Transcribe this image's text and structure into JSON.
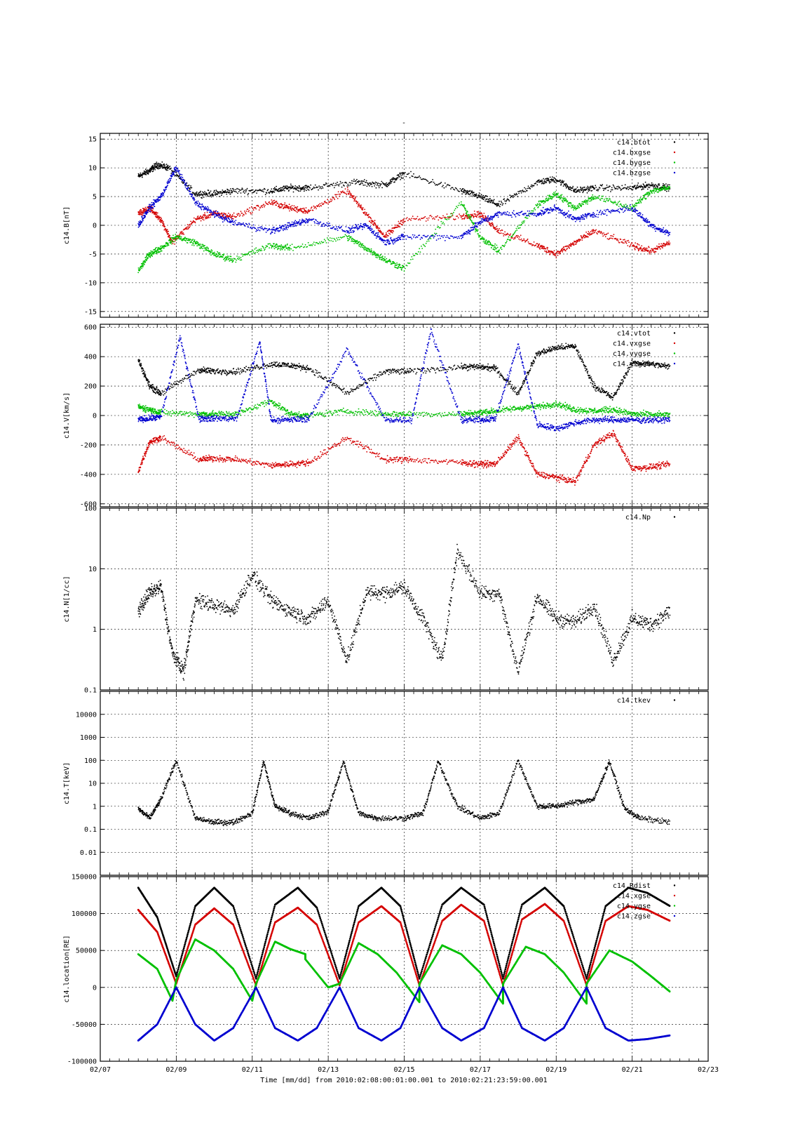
{
  "chart_data": {
    "type": "scatter",
    "title": "-",
    "grid": true,
    "legend_placement": "top-right",
    "colors": {
      "black": "#000000",
      "red": "#d40000",
      "green": "#00c000",
      "blue": "#0000d0"
    },
    "x_axis": {
      "type": "date",
      "min": "02/07",
      "max": "02/23",
      "tick_labels": [
        "02/07",
        "02/09",
        "02/11",
        "02/13",
        "02/15",
        "02/17",
        "02/19",
        "02/21",
        "02/23"
      ],
      "xlabel": "Time [mm/dd]  from 2010:02:08:00:01:00.001  to  2010:02:21:23:59:00.001"
    },
    "panels": [
      {
        "ylabel": "c14.B[nT]",
        "scale": "linear",
        "ylim": [
          -16,
          16
        ],
        "tick_values": [
          -15,
          -10,
          -5,
          0,
          5,
          10,
          15
        ],
        "tick_labels": [
          "-15",
          "-10",
          "-5",
          "0",
          "5",
          "10",
          "15"
        ],
        "series": [
          {
            "name": "c14.btot",
            "color": "#000000",
            "x_days": [
              8.0,
              8.3,
              8.5,
              8.8,
              9.5,
              10.0,
              10.5,
              11.5,
              12.0,
              12.5,
              13.7,
              14.5,
              15.0,
              16.5,
              17.0,
              17.5,
              18.5,
              19.0,
              19.5,
              20.0,
              21.0,
              21.5,
              22.0
            ],
            "values": [
              8.5,
              9.5,
              10.5,
              10.0,
              5.5,
              5.5,
              6.0,
              6.0,
              6.5,
              6.5,
              7.5,
              7.0,
              9.0,
              6.0,
              5.0,
              3.5,
              7.5,
              8.0,
              6.0,
              6.5,
              6.5,
              7.0,
              6.5
            ]
          },
          {
            "name": "c14.bxgse",
            "color": "#d40000",
            "x_days": [
              8.0,
              8.3,
              8.6,
              8.9,
              9.5,
              10.0,
              10.5,
              11.5,
              12.0,
              12.5,
              13.5,
              14.0,
              14.5,
              15.0,
              16.5,
              17.0,
              17.5,
              18.5,
              19.0,
              19.5,
              20.0,
              21.0,
              21.5,
              22.0
            ],
            "values": [
              2.0,
              3.0,
              1.0,
              -3.0,
              1.0,
              2.0,
              1.5,
              4.0,
              3.0,
              2.5,
              6.0,
              2.0,
              -2.0,
              1.0,
              1.5,
              2.0,
              -1.0,
              -3.5,
              -5.0,
              -3.0,
              -1.0,
              -3.5,
              -4.5,
              -3.0
            ]
          },
          {
            "name": "c14.bygse",
            "color": "#00c000",
            "x_days": [
              8.0,
              8.3,
              8.6,
              9.0,
              9.5,
              10.0,
              10.5,
              11.5,
              12.0,
              13.5,
              14.0,
              14.5,
              15.0,
              16.5,
              17.0,
              17.5,
              18.5,
              19.0,
              19.5,
              20.0,
              21.0,
              21.5,
              22.0
            ],
            "values": [
              -8.0,
              -5.0,
              -4.0,
              -2.0,
              -3.0,
              -5.0,
              -6.0,
              -3.5,
              -4.0,
              -2.0,
              -4.0,
              -6.0,
              -7.5,
              4.0,
              -2.0,
              -4.5,
              3.5,
              5.5,
              3.0,
              5.0,
              3.0,
              6.0,
              6.5
            ]
          },
          {
            "name": "c14.bzgse",
            "color": "#0000d0",
            "x_days": [
              8.0,
              8.3,
              8.6,
              9.0,
              9.5,
              10.0,
              10.5,
              11.5,
              12.0,
              12.5,
              13.5,
              14.0,
              14.5,
              15.0,
              16.5,
              17.0,
              17.5,
              18.5,
              19.0,
              19.5,
              20.0,
              21.0,
              21.5,
              22.0
            ],
            "values": [
              0.0,
              3.0,
              5.0,
              10.0,
              4.0,
              2.0,
              0.5,
              -1.0,
              0.0,
              1.0,
              -1.0,
              0.0,
              -3.0,
              -2.0,
              -2.0,
              0.5,
              2.0,
              2.0,
              3.0,
              1.0,
              2.0,
              3.0,
              0.0,
              -1.5
            ]
          }
        ]
      },
      {
        "ylabel": "c14.V[km/s]",
        "scale": "linear",
        "ylim": [
          -620,
          620
        ],
        "tick_values": [
          -600,
          -400,
          -200,
          0,
          200,
          400,
          600
        ],
        "tick_labels": [
          "-600",
          "-400",
          "-200",
          "0",
          "200",
          "400",
          "600"
        ],
        "series": [
          {
            "name": "c14.vtot",
            "color": "#000000",
            "x_days": [
              8.0,
              8.3,
              8.6,
              9.6,
              10.0,
              10.6,
              11.5,
              12.0,
              12.5,
              13.5,
              14.5,
              15.2,
              16.5,
              17.0,
              17.4,
              18.0,
              18.5,
              19.0,
              19.5,
              20.0,
              20.5,
              21.0,
              21.5,
              22.0
            ],
            "values": [
              380,
              200,
              150,
              310,
              300,
              300,
              350,
              340,
              320,
              150,
              300,
              300,
              330,
              330,
              320,
              150,
              420,
              460,
              470,
              200,
              120,
              360,
              350,
              330
            ]
          },
          {
            "name": "c14.vxgse",
            "color": "#d40000",
            "x_days": [
              8.0,
              8.3,
              8.6,
              9.6,
              10.0,
              10.6,
              11.5,
              12.0,
              12.5,
              13.5,
              14.5,
              15.2,
              16.5,
              17.0,
              17.4,
              18.0,
              18.5,
              19.0,
              19.5,
              20.0,
              20.5,
              21.0,
              21.5,
              22.0
            ],
            "values": [
              -380,
              -180,
              -150,
              -300,
              -290,
              -300,
              -340,
              -330,
              -320,
              -150,
              -300,
              -300,
              -320,
              -330,
              -330,
              -150,
              -400,
              -420,
              -450,
              -200,
              -120,
              -360,
              -350,
              -330
            ]
          },
          {
            "name": "c14.vygse",
            "color": "#00c000",
            "x_days": [
              8.0,
              8.3,
              8.6,
              9.6,
              10.0,
              10.6,
              11.5,
              12.0,
              12.5,
              13.5,
              14.5,
              15.2,
              16.5,
              17.0,
              17.4,
              18.0,
              18.5,
              19.0,
              19.5,
              20.0,
              20.5,
              21.0,
              21.5,
              22.0
            ],
            "values": [
              60,
              40,
              20,
              10,
              10,
              10,
              100,
              10,
              0,
              30,
              10,
              10,
              10,
              20,
              30,
              50,
              60,
              80,
              40,
              30,
              40,
              10,
              5,
              5
            ]
          },
          {
            "name": "c14.vzgse",
            "color": "#0000d0",
            "x_days": [
              8.0,
              8.3,
              8.6,
              9.1,
              9.6,
              10.0,
              10.6,
              11.2,
              11.5,
              12.0,
              12.5,
              13.5,
              14.5,
              15.2,
              15.7,
              16.5,
              17.0,
              17.4,
              18.0,
              18.5,
              19.0,
              19.5,
              20.0,
              20.5,
              21.0,
              21.5,
              22.0
            ],
            "values": [
              -30,
              -20,
              -10,
              530,
              -20,
              -20,
              -20,
              500,
              -30,
              -30,
              -20,
              450,
              -30,
              -30,
              580,
              -30,
              -30,
              -20,
              480,
              -60,
              -90,
              -50,
              -30,
              -30,
              -30,
              -30,
              -30
            ]
          }
        ]
      },
      {
        "ylabel": "c14.N[1/cc]",
        "scale": "log",
        "ylim": [
          0.1,
          100
        ],
        "tick_values": [
          0.1,
          1,
          10,
          100
        ],
        "tick_labels": [
          "0.1",
          "1",
          "10",
          "100"
        ],
        "series": [
          {
            "name": "c14.Np",
            "color": "#000000",
            "x_days": [
              8.0,
              8.3,
              8.6,
              8.9,
              9.2,
              9.5,
              10.0,
              10.5,
              11.0,
              11.5,
              12.0,
              12.5,
              13.0,
              13.5,
              14.0,
              14.5,
              15.0,
              15.5,
              16.0,
              16.4,
              17.0,
              17.5,
              18.0,
              18.5,
              19.0,
              19.5,
              20.0,
              20.5,
              21.0,
              21.5,
              22.0
            ],
            "values": [
              2.0,
              4.0,
              5.0,
              0.4,
              0.2,
              3.0,
              2.5,
              2.0,
              8.0,
              3.0,
              2.0,
              1.5,
              3.0,
              0.3,
              4.0,
              4.0,
              5.0,
              1.5,
              0.3,
              20.0,
              4.0,
              4.0,
              0.2,
              3.5,
              1.5,
              1.3,
              2.5,
              0.3,
              1.5,
              1.2,
              2.0
            ]
          }
        ]
      },
      {
        "ylabel": "c14.T[keV]",
        "scale": "log",
        "ylim": [
          0.001,
          100000
        ],
        "tick_values": [
          0.01,
          0.1,
          1,
          10,
          100,
          1000,
          10000
        ],
        "tick_labels": [
          "0.01",
          "0.1",
          "1",
          "10",
          "100",
          "1000",
          "10000"
        ],
        "series": [
          {
            "name": "c14.tkev",
            "color": "#000000",
            "x_days": [
              8.0,
              8.3,
              8.6,
              9.0,
              9.5,
              10.0,
              10.5,
              11.0,
              11.3,
              11.6,
              12.0,
              12.5,
              13.0,
              13.4,
              13.8,
              14.3,
              15.0,
              15.5,
              15.9,
              16.4,
              17.0,
              17.5,
              18.0,
              18.5,
              19.0,
              19.5,
              20.0,
              20.4,
              20.8,
              21.2,
              22.0
            ],
            "values": [
              0.8,
              0.3,
              2.0,
              100,
              0.3,
              0.2,
              0.2,
              0.5,
              90,
              1.0,
              0.5,
              0.3,
              0.6,
              90,
              0.5,
              0.3,
              0.3,
              0.5,
              90,
              1.0,
              0.3,
              0.5,
              100,
              1.0,
              1.0,
              1.5,
              2.0,
              90,
              0.8,
              0.3,
              0.2
            ]
          }
        ]
      },
      {
        "ylabel": "c14.location[RE]",
        "scale": "linear",
        "ylim": [
          -100000,
          150000
        ],
        "tick_values": [
          -100000,
          -50000,
          0,
          50000,
          100000,
          150000
        ],
        "tick_labels": [
          "-100000",
          "-50000",
          "0",
          "50000",
          "100000",
          "150000"
        ],
        "series": [
          {
            "name": "c14.Rdist",
            "color": "#000000",
            "x_days": [
              8.0,
              8.5,
              9.0,
              9.5,
              10.0,
              10.5,
              11.1,
              11.6,
              12.2,
              12.7,
              13.3,
              13.8,
              14.4,
              14.9,
              15.4,
              16.0,
              16.5,
              17.1,
              17.6,
              18.1,
              18.7,
              19.2,
              19.8,
              20.3,
              20.9,
              21.4,
              22.0
            ],
            "values": [
              135000,
              95000,
              15000,
              110000,
              135000,
              110000,
              12000,
              112000,
              135000,
              108000,
              12000,
              110000,
              135000,
              110000,
              12000,
              112000,
              135000,
              112000,
              12000,
              112000,
              135000,
              110000,
              12000,
              110000,
              135000,
              128000,
              110000
            ]
          },
          {
            "name": "c14.xgse",
            "color": "#d40000",
            "x_days": [
              8.0,
              8.5,
              9.0,
              9.5,
              10.0,
              10.5,
              11.1,
              11.6,
              12.2,
              12.7,
              13.3,
              13.8,
              14.4,
              14.9,
              15.4,
              16.0,
              16.5,
              17.1,
              17.6,
              18.1,
              18.7,
              19.2,
              19.8,
              20.3,
              20.9,
              21.4,
              22.0
            ],
            "values": [
              105000,
              75000,
              5000,
              85000,
              107000,
              85000,
              3000,
              88000,
              108000,
              85000,
              3000,
              88000,
              110000,
              88000,
              3000,
              90000,
              112000,
              90000,
              3000,
              92000,
              113000,
              90000,
              3000,
              90000,
              110000,
              105000,
              90000
            ]
          },
          {
            "name": "c14.ygse",
            "color": "#00c000",
            "x_days": [
              8.0,
              8.5,
              8.9,
              9.0,
              9.5,
              10.0,
              10.5,
              11.0,
              11.1,
              11.6,
              12.0,
              12.4,
              12.4,
              13.0,
              13.3,
              13.8,
              14.3,
              14.8,
              15.4,
              15.4,
              16.0,
              16.5,
              17.0,
              17.6,
              17.6,
              18.2,
              18.7,
              19.2,
              19.8,
              19.8,
              20.4,
              21.0,
              21.5,
              22.0
            ],
            "values": [
              45000,
              25000,
              -18000,
              10000,
              65000,
              50000,
              25000,
              -18000,
              5000,
              62000,
              52000,
              45000,
              38000,
              0,
              5000,
              60000,
              45000,
              20000,
              -20000,
              5000,
              57000,
              45000,
              20000,
              -22000,
              5000,
              55000,
              45000,
              20000,
              -22000,
              5000,
              50000,
              35000,
              15000,
              -6000
            ]
          },
          {
            "name": "c14.zgse",
            "color": "#0000d0",
            "x_days": [
              8.0,
              8.5,
              9.0,
              9.5,
              10.0,
              10.5,
              11.1,
              11.6,
              12.2,
              12.7,
              13.3,
              13.8,
              14.4,
              14.9,
              15.4,
              16.0,
              16.5,
              17.1,
              17.6,
              18.1,
              18.7,
              19.2,
              19.8,
              20.3,
              20.9,
              21.4,
              22.0
            ],
            "values": [
              -72000,
              -50000,
              0,
              -50000,
              -72000,
              -55000,
              0,
              -55000,
              -72000,
              -55000,
              0,
              -55000,
              -72000,
              -55000,
              0,
              -55000,
              -72000,
              -55000,
              0,
              -55000,
              -72000,
              -55000,
              0,
              -55000,
              -72000,
              -70000,
              -65000
            ]
          }
        ]
      }
    ]
  }
}
